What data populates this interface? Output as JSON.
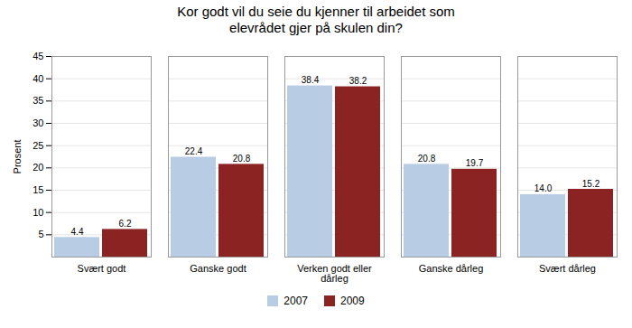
{
  "chart_data": {
    "type": "bar",
    "title": "Kor godt vil du seie du kjenner til arbeidet som\nelevrådet gjer på skulen din?",
    "categories": [
      "Svært godt",
      "Ganske godt",
      "Verken godt eller\ndårleg",
      "Ganske dårleg",
      "Svært dårleg"
    ],
    "series": [
      {
        "name": "2007",
        "color": "#b8cce4",
        "values": [
          4.4,
          22.4,
          38.4,
          20.8,
          14.0
        ],
        "value_labels": [
          "4.4",
          "22.4",
          "38.4",
          "20.8",
          "14.0"
        ]
      },
      {
        "name": "2009",
        "color": "#8b2323",
        "values": [
          6.2,
          20.8,
          38.2,
          19.7,
          15.2
        ],
        "value_labels": [
          "6.2",
          "20.8",
          "38.2",
          "19.7",
          "15.2"
        ]
      }
    ],
    "ylabel": "Prosent",
    "ylim": [
      0,
      45
    ],
    "yticks": [
      5,
      10,
      15,
      20,
      25,
      30,
      35,
      40,
      45
    ],
    "grid": true,
    "legend": "bottom",
    "data_labels": true
  }
}
